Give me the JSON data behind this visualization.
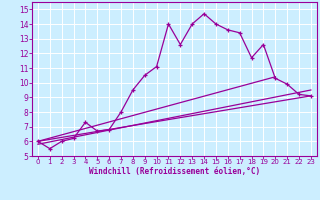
{
  "title": "",
  "xlabel": "Windchill (Refroidissement éolien,°C)",
  "bg_color": "#cceeff",
  "line_color": "#990099",
  "grid_color": "#ffffff",
  "xlim": [
    -0.5,
    23.5
  ],
  "ylim": [
    5,
    15.5
  ],
  "xticks": [
    0,
    1,
    2,
    3,
    4,
    5,
    6,
    7,
    8,
    9,
    10,
    11,
    12,
    13,
    14,
    15,
    16,
    17,
    18,
    19,
    20,
    21,
    22,
    23
  ],
  "yticks": [
    5,
    6,
    7,
    8,
    9,
    10,
    11,
    12,
    13,
    14,
    15
  ],
  "line1_x": [
    0,
    1,
    2,
    3,
    4,
    5,
    6,
    7,
    8,
    9,
    10,
    11,
    12,
    13,
    14,
    15,
    16,
    17,
    18,
    19,
    20,
    21,
    22,
    23
  ],
  "line1_y": [
    6.0,
    5.5,
    6.0,
    6.2,
    7.3,
    6.7,
    6.8,
    8.0,
    9.5,
    10.5,
    11.1,
    14.0,
    12.6,
    14.0,
    14.7,
    14.0,
    13.6,
    13.4,
    11.7,
    12.6,
    10.3,
    9.9,
    9.2,
    9.1
  ],
  "line2_x": [
    0,
    23
  ],
  "line2_y": [
    6.0,
    9.1
  ],
  "line3_x": [
    0,
    20
  ],
  "line3_y": [
    6.0,
    10.4
  ],
  "line4_x": [
    0,
    23
  ],
  "line4_y": [
    5.8,
    9.5
  ]
}
